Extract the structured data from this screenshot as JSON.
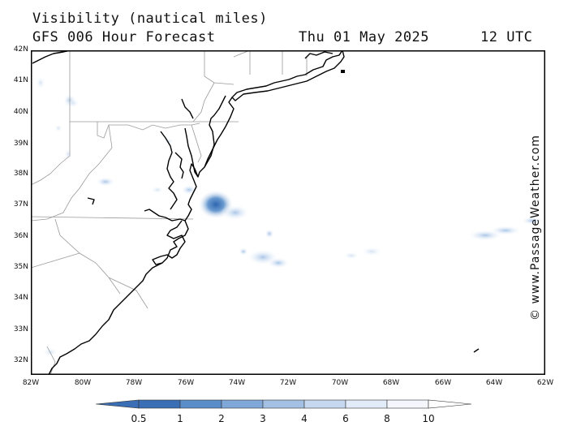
{
  "header": {
    "title": "Visibility (nautical miles)",
    "model": "GFS 006 Hour Forecast",
    "date": "Thu 01 May 2025",
    "time": "12 UTC"
  },
  "credit": "© www.PassageWeather.com",
  "map": {
    "lat_range": [
      31.5,
      42
    ],
    "lon_range": [
      -82,
      -62
    ],
    "lat_ticks": [
      "42N",
      "41N",
      "40N",
      "39N",
      "38N",
      "37N",
      "36N",
      "35N",
      "34N",
      "33N",
      "32N"
    ],
    "lon_ticks": [
      "82W",
      "80W",
      "78W",
      "76W",
      "74W",
      "72W",
      "70W",
      "68W",
      "66W",
      "64W",
      "62W"
    ],
    "fog_patches": [
      {
        "lat": 37.0,
        "lon": -75.0,
        "vis": 1
      },
      {
        "lat": 36.9,
        "lon": -74.8,
        "vis": 2
      },
      {
        "lat": 35.4,
        "lon": -72.8,
        "vis": 4
      },
      {
        "lat": 36.4,
        "lon": -63.3,
        "vis": 4
      },
      {
        "lat": 36.6,
        "lon": -62.4,
        "vis": 6
      },
      {
        "lat": 40.4,
        "lon": -80.3,
        "vis": 6
      },
      {
        "lat": 37.6,
        "lon": -80.5,
        "vis": 6
      }
    ]
  },
  "legend": {
    "labels": [
      "0.5",
      "1",
      "2",
      "3",
      "4",
      "6",
      "8",
      "10"
    ],
    "colors": [
      "#3a6fb5",
      "#4d81c1",
      "#6a9acf",
      "#8fb4dd",
      "#b3cdea",
      "#d2e1f3",
      "#ebf2fb",
      "#ffffff"
    ]
  }
}
